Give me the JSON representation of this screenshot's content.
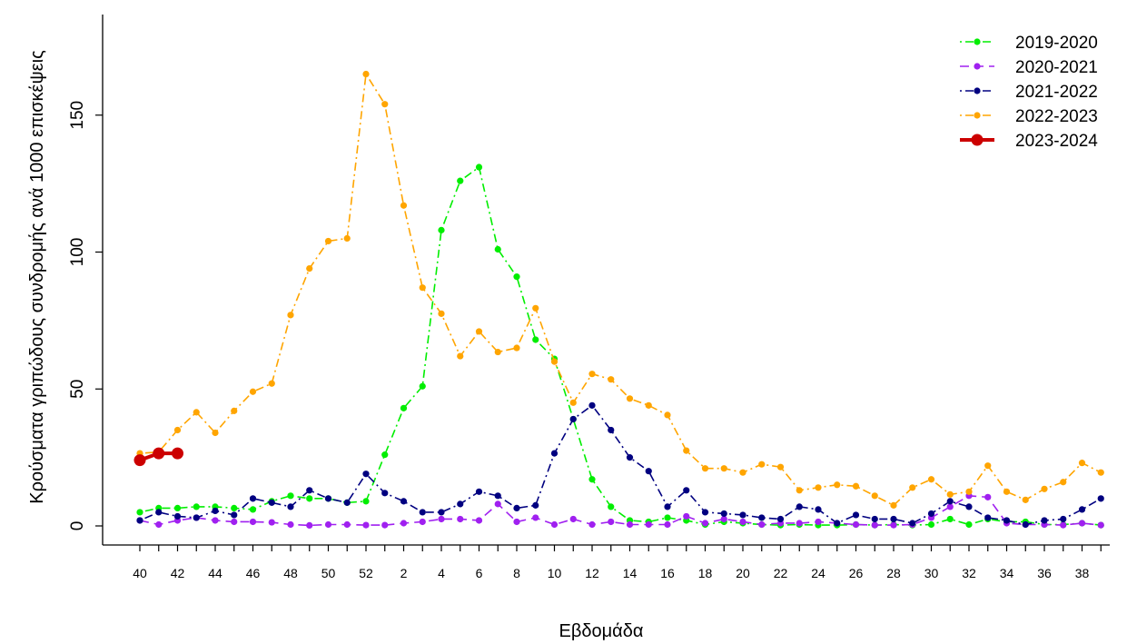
{
  "chart_data": {
    "type": "line",
    "title": "",
    "xlabel": "Εβδομάδα",
    "ylabel": "Κρούσματα γριπώδους συνδρομής ανά 1000 επισκέψεις",
    "ylim": [
      0,
      185
    ],
    "y_ticks": [
      0,
      50,
      100,
      150
    ],
    "weeks": [
      40,
      41,
      42,
      43,
      44,
      45,
      46,
      47,
      48,
      49,
      50,
      51,
      52,
      1,
      2,
      3,
      4,
      5,
      6,
      7,
      8,
      9,
      10,
      11,
      12,
      13,
      14,
      15,
      16,
      17,
      18,
      19,
      20,
      21,
      22,
      23,
      24,
      25,
      26,
      27,
      28,
      29,
      30,
      31,
      32,
      33,
      34,
      35,
      36,
      37,
      38,
      39
    ],
    "x_tick_labels": [
      "40",
      "42",
      "44",
      "46",
      "48",
      "50",
      "52",
      "2",
      "4",
      "6",
      "8",
      "10",
      "12",
      "14",
      "16",
      "18",
      "20",
      "22",
      "24",
      "26",
      "28",
      "30",
      "32",
      "34",
      "36",
      "38"
    ],
    "grid": false,
    "legend_position": "top-right",
    "series": [
      {
        "name": "2019-2020",
        "color": "#00ee00",
        "dash": "dotdash",
        "values": [
          5,
          6.5,
          6.5,
          7,
          7,
          6.5,
          6,
          9,
          11,
          10,
          10,
          8.5,
          9,
          26,
          43,
          51,
          108,
          126,
          131,
          101,
          91,
          68,
          61,
          39,
          17,
          7,
          2,
          1.5,
          3,
          2,
          0.5,
          1.5,
          1,
          0.5,
          0.3,
          0.5,
          0.3,
          0.3,
          0.5,
          0.3,
          0.5,
          0.3,
          0.5,
          2.5,
          0.5,
          2.5,
          1.5,
          1.5,
          0.5,
          0.5,
          1,
          0.3
        ]
      },
      {
        "name": "2020-2021",
        "color": "#a020f0",
        "dash": "longdash",
        "values": [
          2,
          0.5,
          2,
          3,
          2,
          1.5,
          1.5,
          1.3,
          0.5,
          0.2,
          0.5,
          0.5,
          0.3,
          0.3,
          1,
          1.5,
          2.5,
          2.5,
          2,
          8,
          1.5,
          3,
          0.5,
          2.5,
          0.5,
          1.5,
          0.5,
          0.5,
          0.5,
          3.5,
          1,
          2.5,
          1.5,
          0.5,
          1,
          1,
          1.5,
          1,
          0.5,
          0.3,
          0.3,
          0.5,
          3,
          7,
          11,
          10.5,
          1,
          0.5,
          0.5,
          0.3,
          1,
          0.3
        ]
      },
      {
        "name": "2021-2022",
        "color": "#000080",
        "dash": "dotdash",
        "values": [
          2,
          5,
          3.5,
          3,
          5.5,
          4,
          10,
          8.5,
          7,
          13,
          10,
          8.5,
          19,
          12,
          9,
          5,
          5,
          8,
          12.5,
          11,
          6.5,
          7.5,
          26.5,
          39,
          44,
          35,
          25,
          20,
          7,
          13,
          5,
          4.5,
          4,
          3,
          2.5,
          7,
          6,
          1,
          4,
          2.5,
          2.5,
          1,
          4.5,
          9,
          7,
          3,
          2,
          0.5,
          2,
          2.5,
          6,
          10
        ]
      },
      {
        "name": "2022-2023",
        "color": "#ffa500",
        "dash": "dotdash",
        "values": [
          26.5,
          27,
          35,
          41.5,
          34,
          42,
          49,
          52,
          77,
          94,
          104,
          105,
          165,
          154,
          117,
          87,
          77.5,
          62,
          71,
          63.5,
          65,
          79.5,
          60,
          45,
          55.5,
          53.5,
          46.5,
          44,
          40.5,
          27.5,
          21,
          21,
          19.5,
          22.5,
          21.5,
          13,
          14,
          15,
          14.5,
          11,
          7.5,
          14,
          17,
          11.5,
          12.5,
          22,
          12.5,
          9.5,
          13.5,
          16,
          23,
          19.5
        ]
      },
      {
        "name": "2023-2024",
        "color": "#cc0000",
        "dash": "solid",
        "values": [
          24,
          26.5,
          26.5
        ]
      }
    ]
  }
}
